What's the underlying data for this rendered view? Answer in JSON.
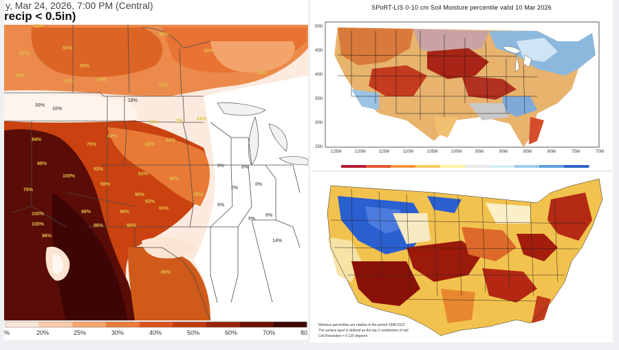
{
  "left_map": {
    "subtitle": "y, Mar 24, 2026, 7:00 PM (Central)",
    "title": "recip < 0.5in)",
    "point_labels": [
      "45%",
      "55%",
      "27%",
      "55%",
      "59%",
      "30%",
      "10%",
      "69%",
      "67%",
      "55%",
      "33%",
      "30%",
      "10%",
      "18%",
      "14%",
      "2%",
      "24%",
      "42%",
      "43%",
      "94%",
      "75%",
      "65%",
      "98%",
      "100%",
      "92%",
      "93%",
      "96%",
      "76%",
      "98%",
      "96%",
      "100%",
      "98%",
      "96%",
      "92%",
      "63%",
      "39%",
      "100%",
      "98%",
      "98%",
      "96%",
      "0%",
      "0%",
      "0%",
      "0%",
      "0%",
      "0%",
      "0%",
      "14%",
      "96%"
    ],
    "colorbar_ticks": [
      "%",
      "20%",
      "25%",
      "30%",
      "40%",
      "50%",
      "60%",
      "70%",
      "80"
    ],
    "colorbar_colors": [
      "#fbe7d8",
      "#f9cba5",
      "#f5a66b",
      "#ec7c3c",
      "#da5420",
      "#be3a0d",
      "#9a2406",
      "#6b1204",
      "#3f0606"
    ]
  },
  "top_right_map": {
    "title": "SPoRT-LIS 0-10 cm Soil Moisture percentile valid 10 Mar 2026",
    "lat_labels": [
      "50N",
      "45N",
      "40N",
      "35N",
      "30N",
      "25N"
    ],
    "lon_labels": [
      "125W",
      "120W",
      "115W",
      "110W",
      "105W",
      "100W",
      "95W",
      "90W",
      "85W",
      "80W",
      "75W",
      "70W"
    ],
    "colorbar_colors": [
      "#b2182b",
      "#e2512c",
      "#f59440",
      "#fbcc5e",
      "#fff3a6",
      "#e8e8e8",
      "#d5eef8",
      "#9ecbef",
      "#5d9ee0",
      "#2a63c8"
    ]
  },
  "bottom_right_map": {
    "footnotes": [
      "Wetness percentiles are relative to the period 1948-2012",
      "The surface layer is defined as the top 2 centimeters of soil",
      "Cell Resolution = 0.125 degrees"
    ]
  }
}
